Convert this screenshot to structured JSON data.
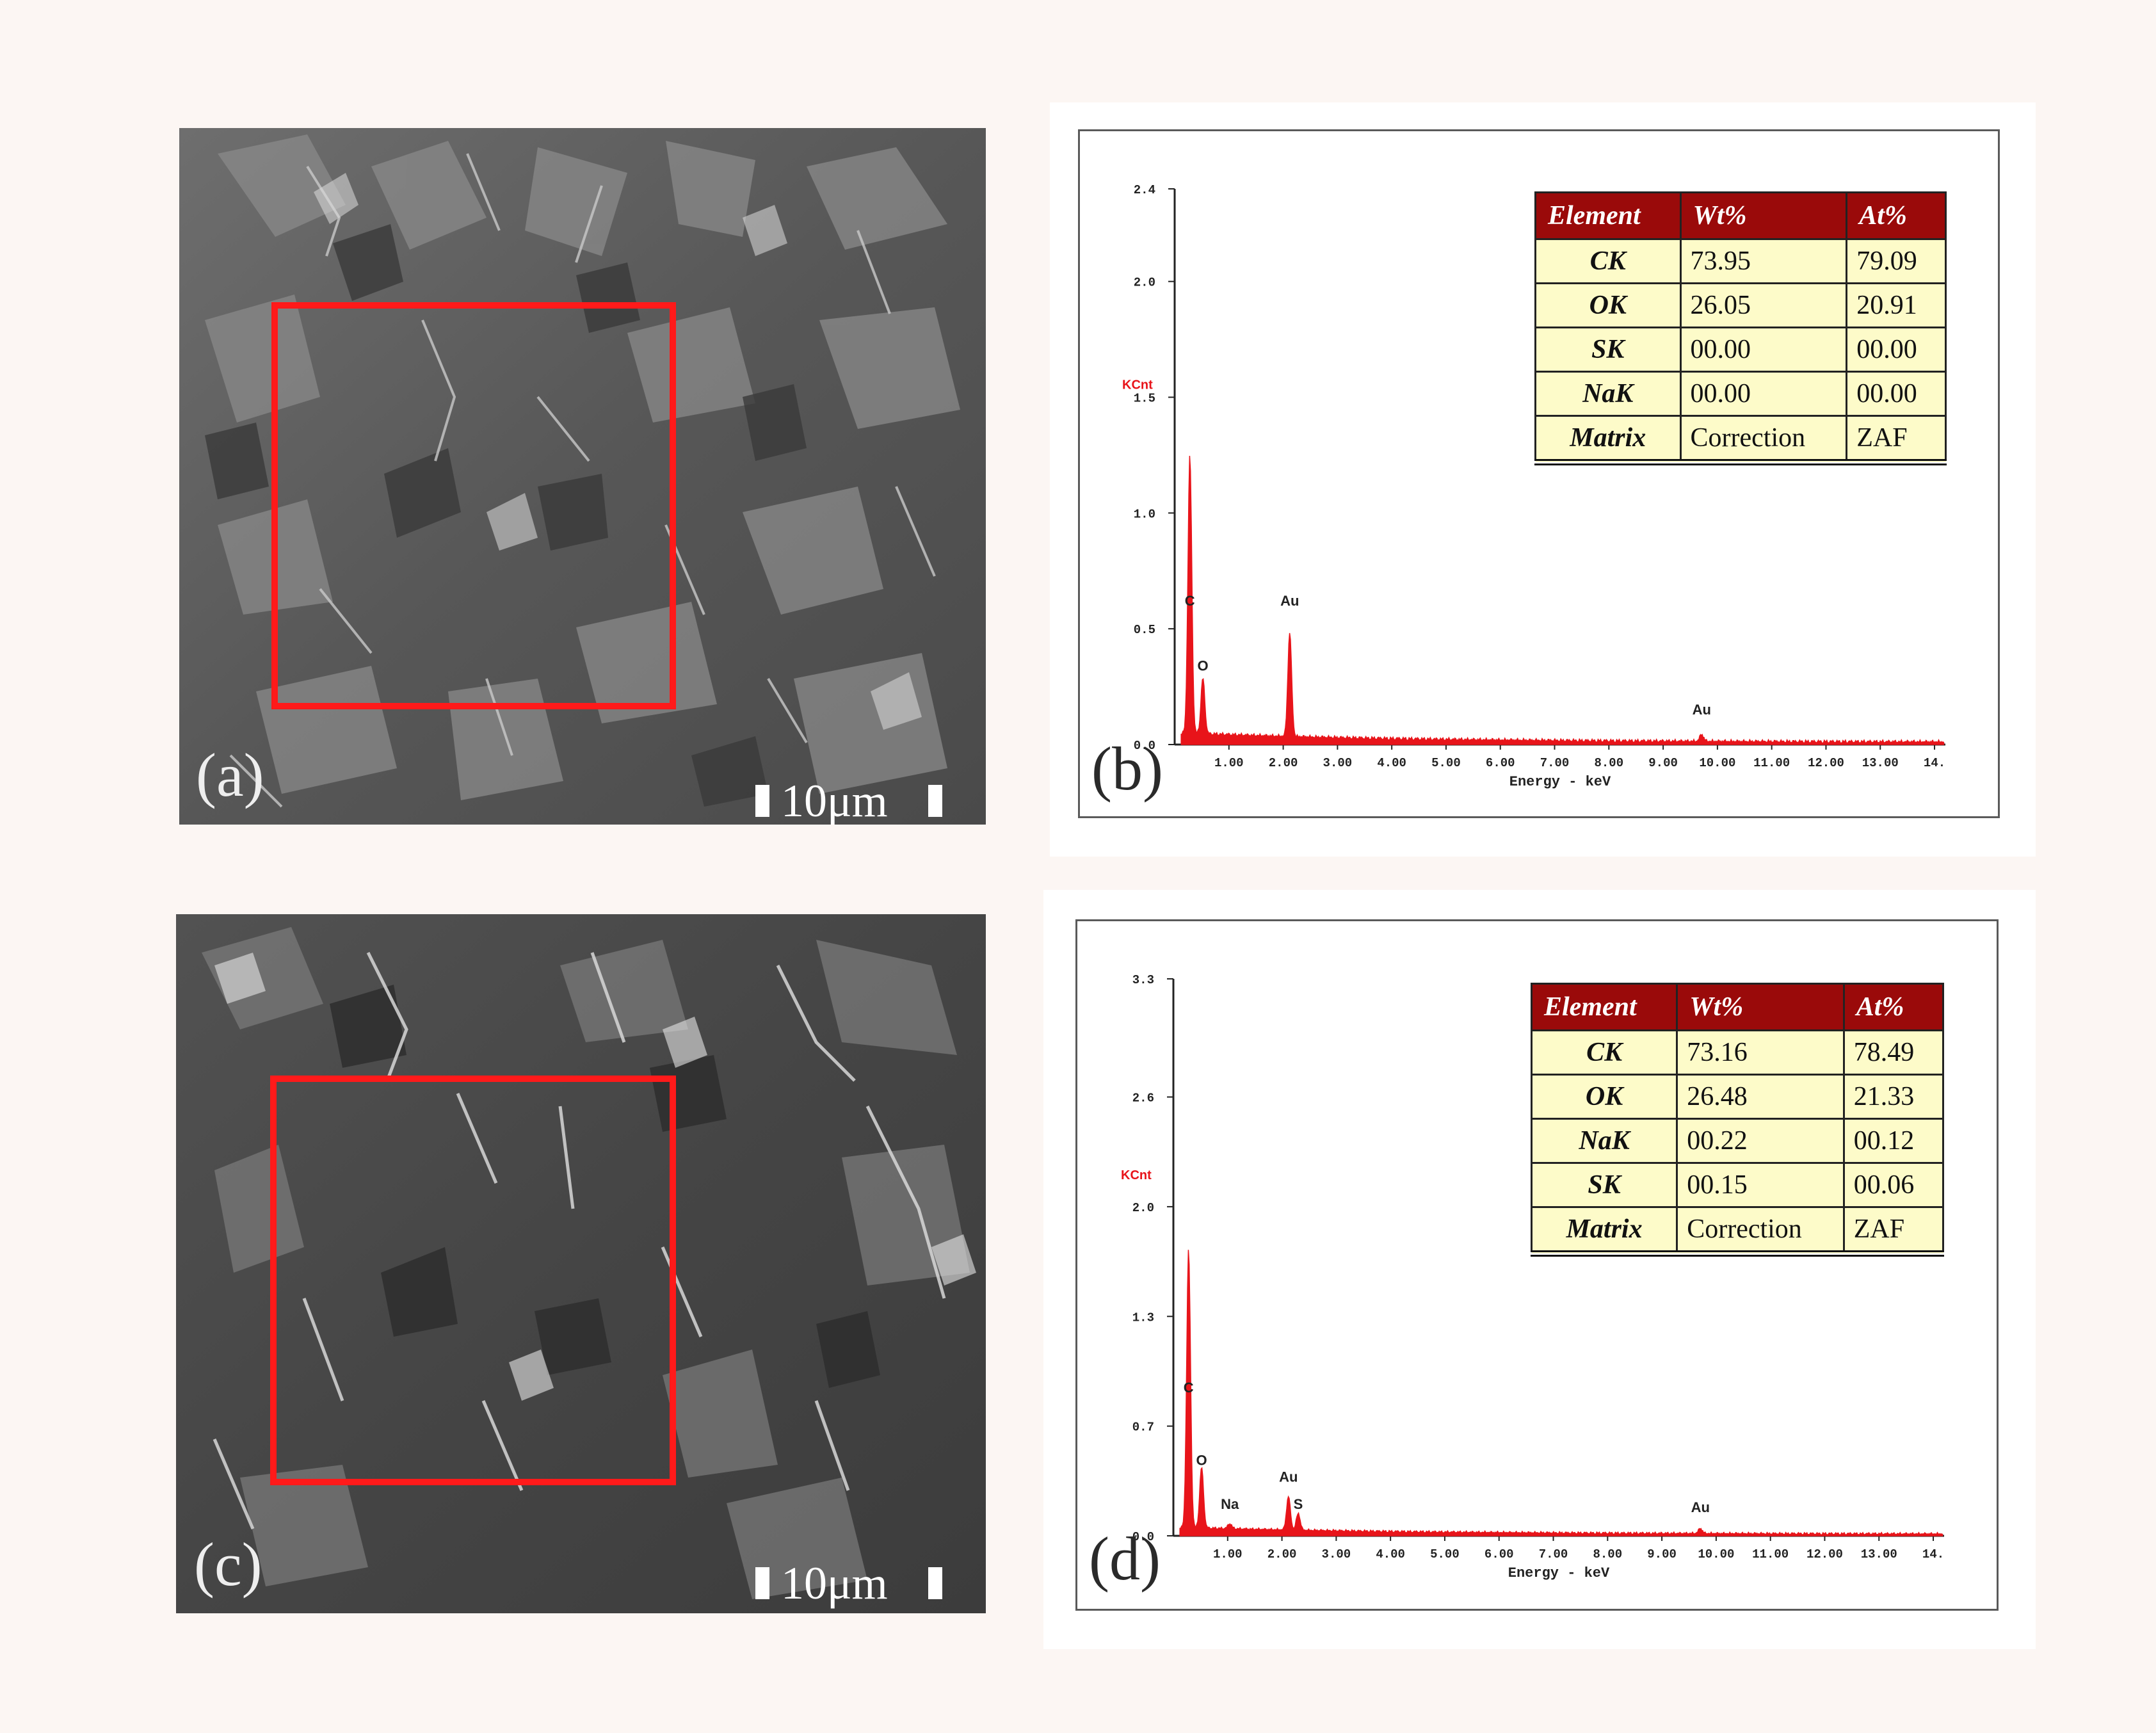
{
  "panels": {
    "a": {
      "label": "(a)",
      "scale": "10μm"
    },
    "b": {
      "label": "(b)",
      "table": {
        "headers": [
          "Element",
          "Wt%",
          "At%"
        ],
        "rows": [
          [
            "CK",
            "73.95",
            "79.09"
          ],
          [
            "OK",
            "26.05",
            "20.91"
          ],
          [
            "SK",
            "00.00",
            "00.00"
          ],
          [
            "NaK",
            "00.00",
            "00.00"
          ],
          [
            "Matrix",
            "Correction",
            "ZAF"
          ]
        ]
      }
    },
    "c": {
      "label": "(c)",
      "scale": "10μm"
    },
    "d": {
      "label": "(d)",
      "table": {
        "headers": [
          "Element",
          "Wt%",
          "At%"
        ],
        "rows": [
          [
            "CK",
            "73.16",
            "78.49"
          ],
          [
            "OK",
            "26.48",
            "21.33"
          ],
          [
            "NaK",
            "00.22",
            "00.12"
          ],
          [
            "SK",
            "00.15",
            "00.06"
          ],
          [
            "Matrix",
            "Correction",
            "ZAF"
          ]
        ]
      }
    }
  },
  "colors": {
    "spectrum": "#e8141a",
    "table_header": "#9a0a0a",
    "table_cell": "#fdfbc9",
    "roi": "#ff1a1a"
  },
  "chart_data": [
    {
      "type": "line",
      "panel": "b",
      "ylabel": "KCnt",
      "xlabel": "Energy - keV",
      "ylim": [
        0,
        2.4
      ],
      "xlim": [
        0,
        14.2
      ],
      "y_ticks": [
        "0.0",
        "0.5",
        "1.0",
        "1.5",
        "2.0",
        "2.4"
      ],
      "y_tick_values": [
        0,
        0.5,
        1.0,
        1.5,
        2.0,
        2.4
      ],
      "x_ticks": [
        "1.00",
        "2.00",
        "3.00",
        "4.00",
        "5.00",
        "6.00",
        "7.00",
        "8.00",
        "9.00",
        "10.00",
        "11.00",
        "12.00",
        "13.00",
        "14."
      ],
      "x_tick_values": [
        1,
        2,
        3,
        4,
        5,
        6,
        7,
        8,
        9,
        10,
        11,
        12,
        13,
        14
      ],
      "peaks": [
        {
          "label": "C",
          "x": 0.28,
          "y": 1.2
        },
        {
          "label": "O",
          "x": 0.52,
          "y": 0.24
        },
        {
          "label": "Au",
          "x": 2.12,
          "y": 0.45
        },
        {
          "label": "Au",
          "x": 9.71,
          "y": 0.03
        }
      ],
      "peak_labels": [
        {
          "text": "C",
          "x": 0.28,
          "y": 0.6
        },
        {
          "text": "O",
          "x": 0.52,
          "y": 0.32
        },
        {
          "text": "Au",
          "x": 2.12,
          "y": 0.6
        },
        {
          "text": "Au",
          "x": 9.71,
          "y": 0.13
        }
      ],
      "background_level": 0.04
    },
    {
      "type": "line",
      "panel": "d",
      "ylabel": "KCnt",
      "xlabel": "Energy - keV",
      "ylim": [
        0,
        3.3
      ],
      "xlim": [
        0,
        14.2
      ],
      "y_ticks": [
        "0.0",
        "0.7",
        "1.3",
        "2.0",
        "2.6",
        "3.3"
      ],
      "y_tick_values": [
        0,
        0.65,
        1.3,
        1.95,
        2.6,
        3.3
      ],
      "x_ticks": [
        "1.00",
        "2.00",
        "3.00",
        "4.00",
        "5.00",
        "6.00",
        "7.00",
        "8.00",
        "9.00",
        "10.00",
        "11.00",
        "12.00",
        "13.00",
        "14."
      ],
      "x_tick_values": [
        1,
        2,
        3,
        4,
        5,
        6,
        7,
        8,
        9,
        10,
        11,
        12,
        13,
        14
      ],
      "peaks": [
        {
          "label": "C",
          "x": 0.28,
          "y": 1.65
        },
        {
          "label": "O",
          "x": 0.52,
          "y": 0.36
        },
        {
          "label": "Na",
          "x": 1.04,
          "y": 0.03
        },
        {
          "label": "Au",
          "x": 2.12,
          "y": 0.2
        },
        {
          "label": "S",
          "x": 2.3,
          "y": 0.1
        },
        {
          "label": "Au",
          "x": 9.71,
          "y": 0.03
        }
      ],
      "peak_labels": [
        {
          "text": "C",
          "x": 0.28,
          "y": 0.85
        },
        {
          "text": "O",
          "x": 0.52,
          "y": 0.42
        },
        {
          "text": "Na",
          "x": 1.04,
          "y": 0.16
        },
        {
          "text": "Au",
          "x": 2.12,
          "y": 0.32
        },
        {
          "text": "S",
          "x": 2.3,
          "y": 0.16
        },
        {
          "text": "Au",
          "x": 9.71,
          "y": 0.14
        }
      ],
      "background_level": 0.04
    }
  ]
}
